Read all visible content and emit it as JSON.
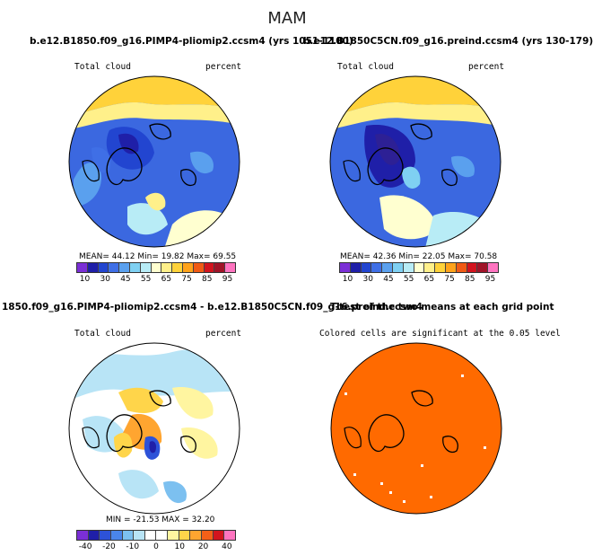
{
  "figure": {
    "title": "MAM"
  },
  "panels": [
    {
      "title": "b.e12.B1850.f09_g16.PIMP4-pliomip2.ccsm4 (yrs 1051-1100)",
      "left_label": "Total cloud",
      "right_label": "percent",
      "stats": "MEAN=  44.12  Min=  19.82  Max=  69.55",
      "colorbar_labels": [
        "10",
        "30",
        "45",
        "55",
        "65",
        "75",
        "85",
        "95"
      ]
    },
    {
      "title": "b.e12.B1850C5CN.f09_g16.preind.ccsm4 (yrs 130-179)",
      "left_label": "Total cloud",
      "right_label": "percent",
      "stats": "MEAN=  42.36  Min=  22.05  Max=  70.58",
      "colorbar_labels": [
        "10",
        "30",
        "45",
        "55",
        "65",
        "75",
        "85",
        "95"
      ]
    },
    {
      "title": "1850.f09_g16.PIMP4-pliomip2.ccsm4 - b.e12.B1850C5CN.f09_g16.preind.ccsm4",
      "left_label": "Total cloud",
      "right_label": "percent",
      "stats": "MIN = -21.53  MAX =  32.20",
      "colorbar_labels": [
        "-40",
        "-20",
        "-10",
        "0",
        "10",
        "20",
        "40"
      ]
    },
    {
      "title": "T-test of the two means at each grid point",
      "left_label": "Colored cells are significant at the 0.05 level",
      "right_label": "",
      "stats": "",
      "colorbar_labels": []
    }
  ],
  "colors": {
    "abs_scale": [
      "#7b2fd6",
      "#1f1fa8",
      "#2245d0",
      "#3f6fe6",
      "#5aa0ee",
      "#7fd0f2",
      "#b8ecf6",
      "#ffffd0",
      "#fff08a",
      "#ffd23a",
      "#ffa21a",
      "#f05a14",
      "#d2141e",
      "#a01428",
      "#ff74c0"
    ],
    "diff_scale": [
      "#7b2fd6",
      "#1f1fa8",
      "#2d52d8",
      "#4a85ea",
      "#7cc0f0",
      "#b8e4f6",
      "#ffffff",
      "#ffffff",
      "#fff5a0",
      "#ffd54a",
      "#ffa530",
      "#f56018",
      "#d2141e",
      "#ff74c0"
    ],
    "ttest_fill": "#ff6a00"
  }
}
